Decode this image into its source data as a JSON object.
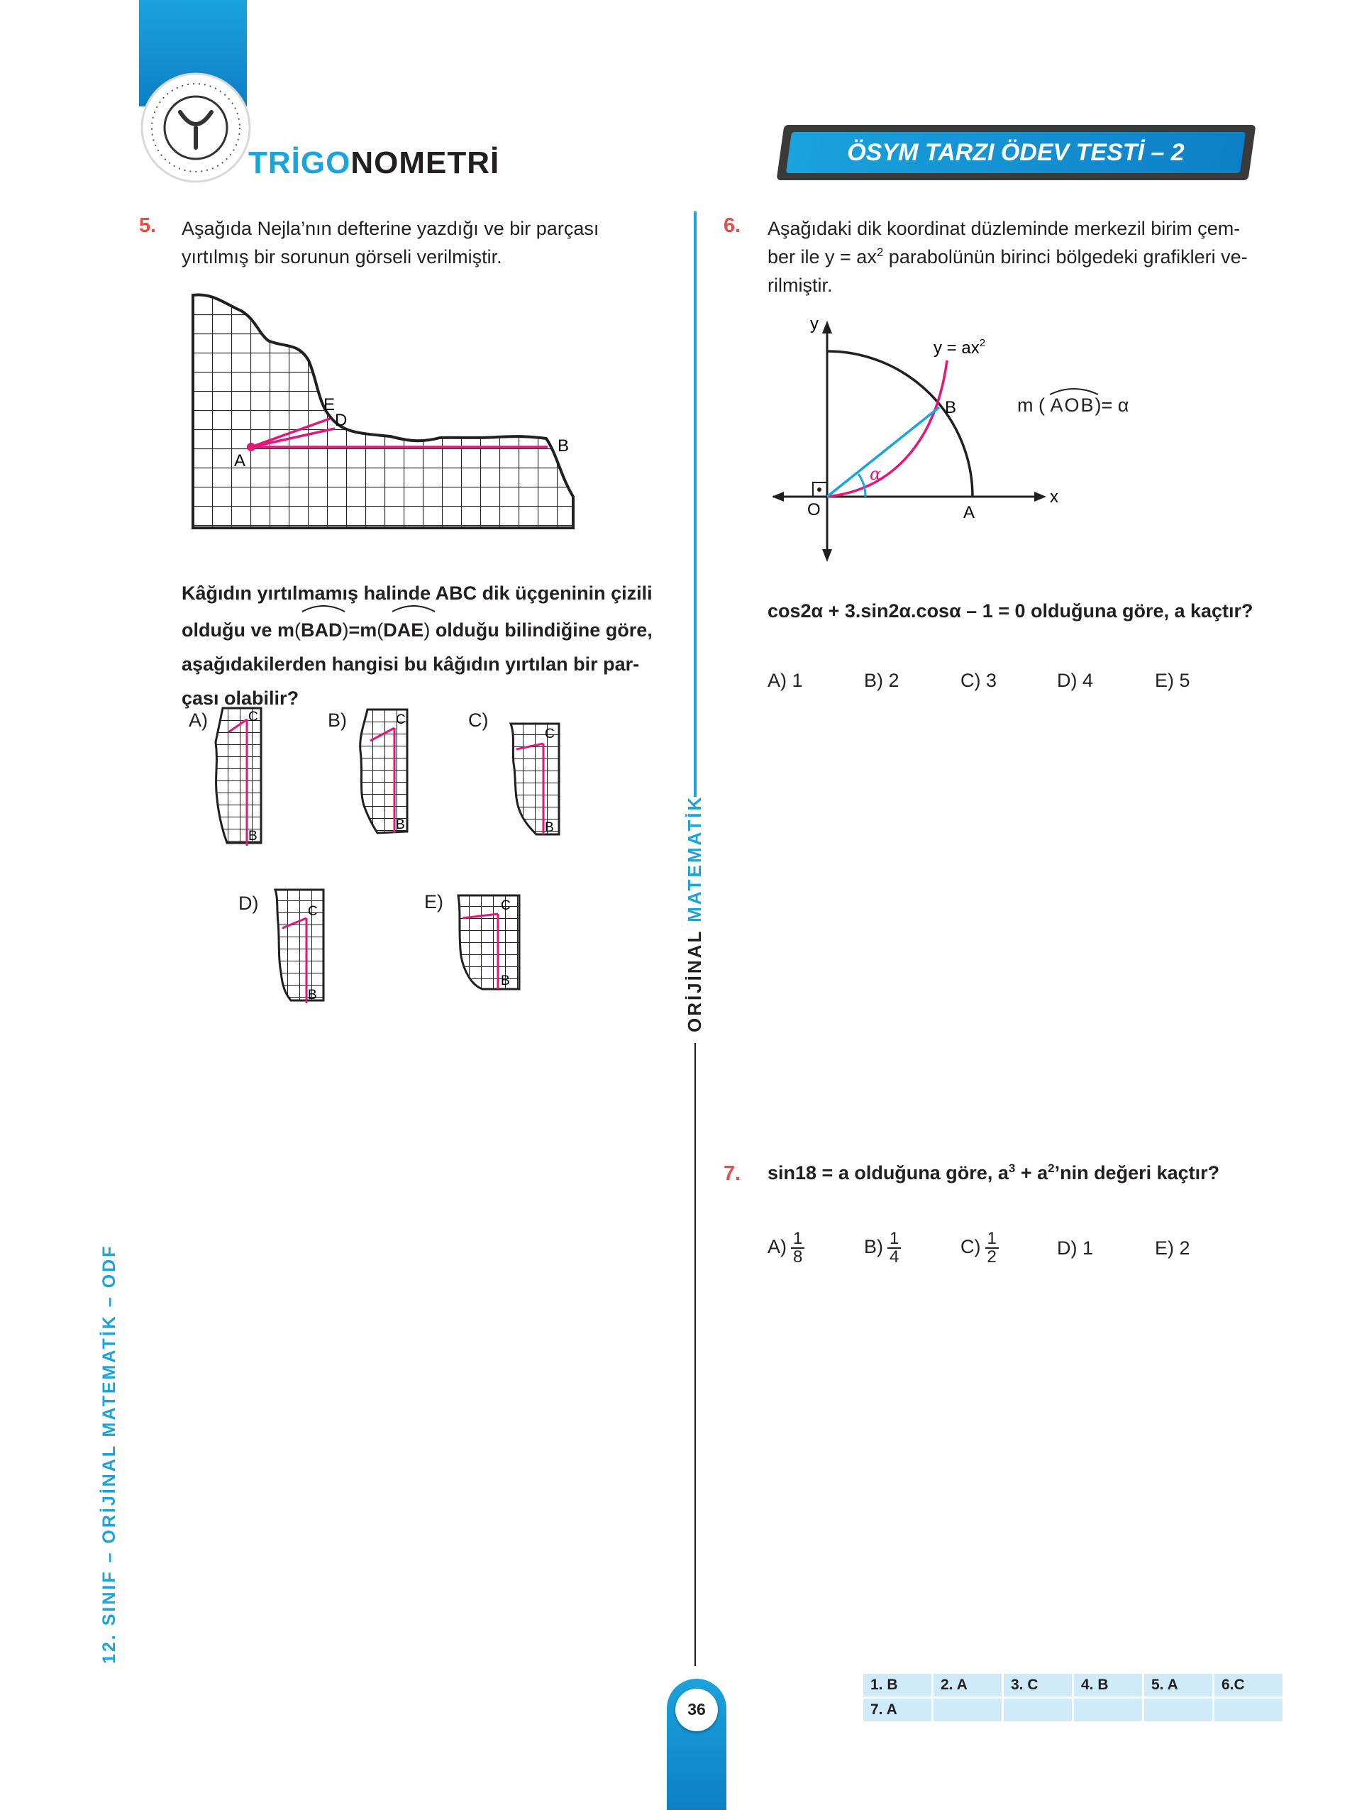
{
  "header": {
    "brand_highlight": "TRİGO",
    "brand_rest": "NOMETRİ",
    "test_title": "ÖSYM TARZI ÖDEV TESTİ – 2"
  },
  "side_labels": {
    "left_prefix": "12. SINIF – ORİJİNAL ",
    "left_highlight": "MATEMATİK",
    "left_suffix": " – ODF",
    "center_prefix": "ORİJİNAL ",
    "center_highlight": "MATEMATİK"
  },
  "q5": {
    "number": "5.",
    "text": "Aşağıda Nejla’nın defterine yazdığı ve bir parçası yırtılmış bir sorunun görseli verilmiştir.",
    "figure_labels": {
      "a": "A",
      "b": "B",
      "d": "D",
      "e": "E"
    },
    "line1": "Kâğıdın yırtılmamış halinde ABC dik üçgeninin çizili",
    "line2_a": "olduğu ve m",
    "angle1": "BAD",
    "line2_eq": "=m",
    "angle2": "DAE",
    "line2_b": " olduğu bilindiğine göre,",
    "line3": "aşağıdakilerden hangisi bu kâğıdın yırtılan bir par-",
    "line4": "çası olabilir?",
    "options": [
      "A)",
      "B)",
      "C)",
      "D)",
      "E)"
    ],
    "piece_labels": {
      "c": "C",
      "b": "B"
    }
  },
  "q6": {
    "number": "6.",
    "text_1": "Aşağıdaki dik koordinat düzleminde merkezil birim çem-",
    "text_2a": "ber ile y = ax",
    "text_2sup": "2",
    "text_2b": " parabolünün birinci bölgedeki grafikleri ve-",
    "text_3": "rilmiştir.",
    "figure": {
      "y_axis": "y",
      "x_axis": "x",
      "origin": "O",
      "point_a": "A",
      "point_b": "B",
      "alpha": "α",
      "curve_label": "y = ax",
      "curve_sup": "2",
      "angle_label_prefix": "m",
      "angle_label_arc": "AOB",
      "angle_label_suffix": "= α"
    },
    "question": "cos2α + 3.sin2α.cosα – 1 = 0 olduğuna göre, a kaçtır?",
    "choices": [
      "A) 1",
      "B) 2",
      "C) 3",
      "D) 4",
      "E) 5"
    ]
  },
  "q7": {
    "number": "7.",
    "q_a": "sin18 = a  olduğuna göre, a",
    "q_sup1": "3",
    "q_b": " + a",
    "q_sup2": "2",
    "q_c": "’nin değeri kaçtır?",
    "choices": [
      {
        "label": "A)",
        "num": "1",
        "den": "8"
      },
      {
        "label": "B)",
        "num": "1",
        "den": "4"
      },
      {
        "label": "C)",
        "num": "1",
        "den": "2"
      },
      {
        "label": "D) 1"
      },
      {
        "label": "E) 2"
      }
    ]
  },
  "answer_key": {
    "row1": [
      "1. B",
      "2. A",
      "3. C",
      "4. B",
      "5. A",
      "6.C"
    ],
    "row2": [
      "7. A",
      "",
      "",
      "",
      "",
      ""
    ]
  },
  "page_number": "36",
  "colors": {
    "blue": "#1aa3dc",
    "dark_blue": "#0e6fb8",
    "pink": "#e5157a",
    "red": "#e0514b"
  }
}
